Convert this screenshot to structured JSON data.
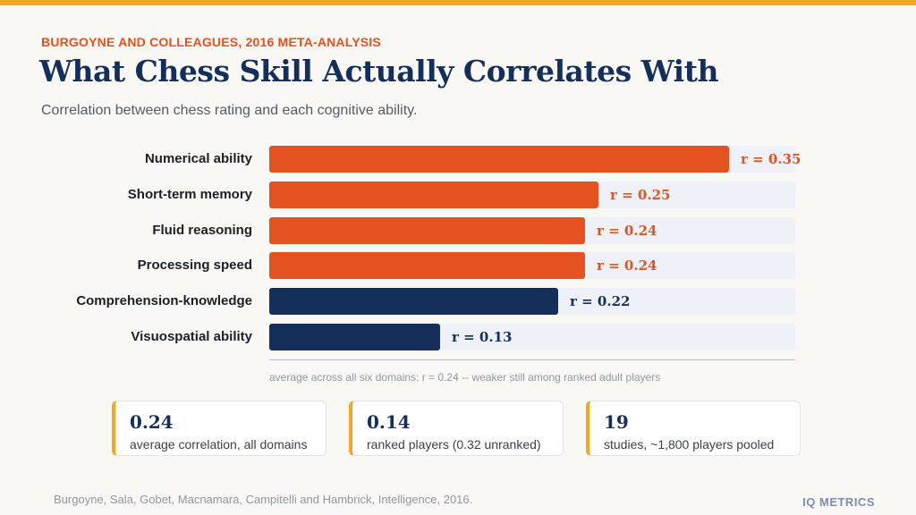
{
  "header": {
    "eyebrow": "BURGOYNE AND COLLEAGUES, 2016 META-ANALYSIS",
    "title": "What Chess Skill Actually Correlates With",
    "subtitle": "Correlation between chess rating and each cognitive ability."
  },
  "colors": {
    "accent_bar": "#f5a623",
    "orange": "#e4521f",
    "navy": "#14305a",
    "track": "#eef1f7"
  },
  "chart_data": {
    "type": "bar",
    "orientation": "horizontal",
    "categories": [
      "Numerical ability",
      "Short-term memory",
      "Fluid reasoning",
      "Processing speed",
      "Comprehension-knowledge",
      "Visuospatial ability"
    ],
    "values": [
      0.35,
      0.25,
      0.24,
      0.24,
      0.22,
      0.13
    ],
    "value_labels": [
      "r = 0.35",
      "r = 0.25",
      "r = 0.24",
      "r = 0.24",
      "r = 0.22",
      "r = 0.13"
    ],
    "bar_colors": [
      "#e4521f",
      "#e4521f",
      "#e4521f",
      "#e4521f",
      "#14305a",
      "#14305a"
    ],
    "xlim": [
      0,
      0.4
    ],
    "note": "average across all six domains: r = 0.24 -- weaker still among ranked adult players"
  },
  "stats": [
    {
      "value": "0.24",
      "label": "average correlation, all domains"
    },
    {
      "value": "0.14",
      "label": "ranked players (0.32 unranked)"
    },
    {
      "value": "19",
      "label": "studies, ~1,800 players pooled"
    }
  ],
  "footer": {
    "source": "Burgoyne, Sala, Gobet, Macnamara, Campitelli and Hambrick, Intelligence, 2016.",
    "brand": "IQ METRICS"
  }
}
